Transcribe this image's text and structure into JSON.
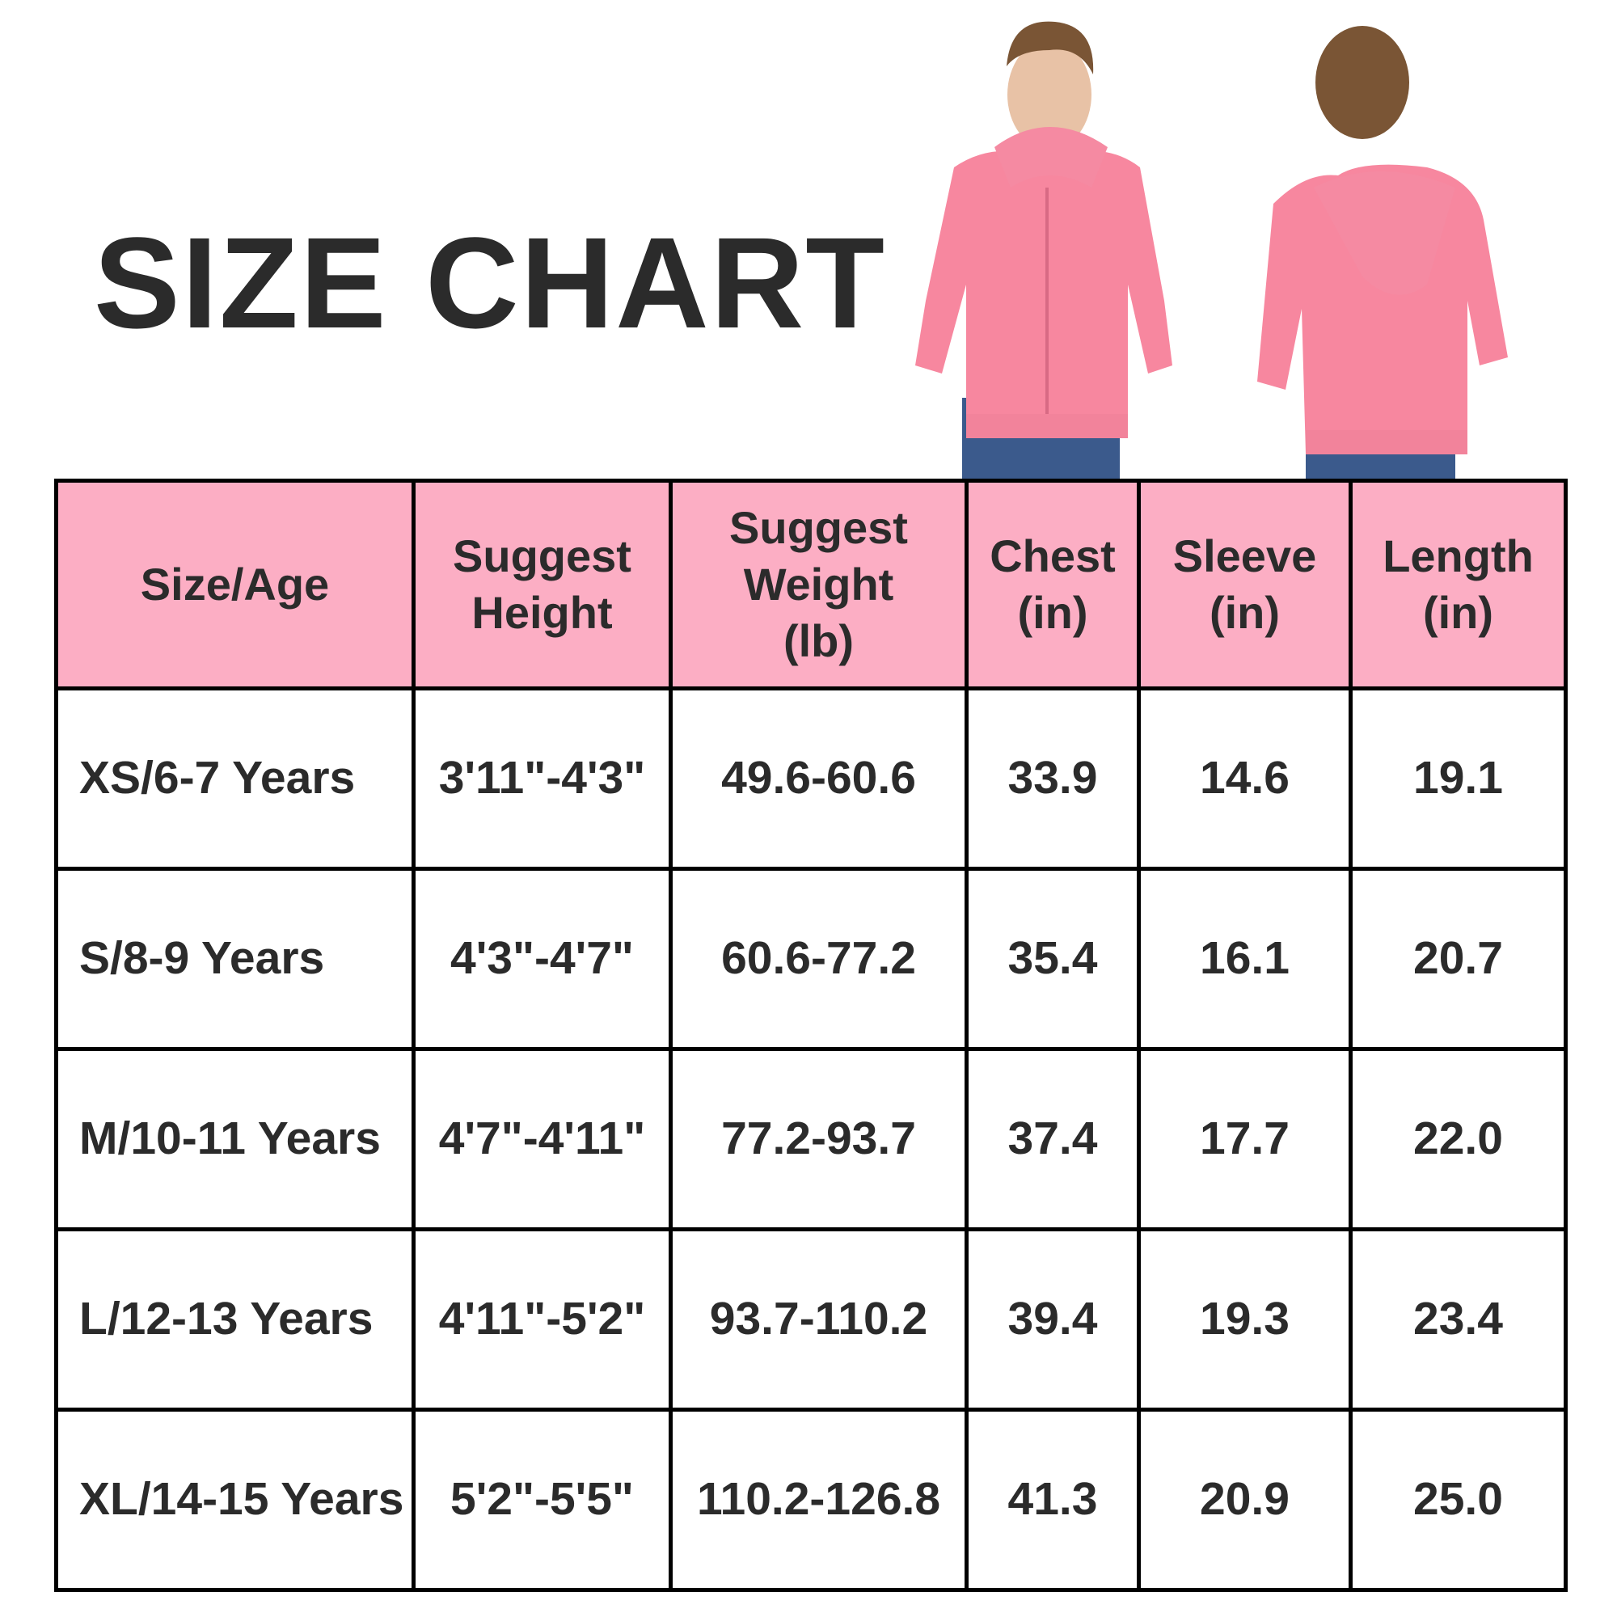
{
  "title": "SIZE CHART",
  "colors": {
    "header_bg": "#fcaec4",
    "hoodie": "#f7879f",
    "text": "#2b2b2b",
    "jeans": "#3b5a8c"
  },
  "images": [
    {
      "name": "model-front-photo",
      "desc_icon": "hoodie-front"
    },
    {
      "name": "model-back-photo",
      "desc_icon": "hoodie-back"
    }
  ],
  "table": {
    "headers": [
      "Size/Age",
      "Suggest\nHeight",
      "Suggest\nWeight\n(lb)",
      "Chest\n(in)",
      "Sleeve\n(in)",
      "Length\n(in)"
    ],
    "rows": [
      [
        "XS/6-7 Years",
        "3'11\"-4'3\"",
        "49.6-60.6",
        "33.9",
        "14.6",
        "19.1"
      ],
      [
        "S/8-9 Years",
        "4'3\"-4'7\"",
        "60.6-77.2",
        "35.4",
        "16.1",
        "20.7"
      ],
      [
        "M/10-11 Years",
        "4'7\"-4'11\"",
        "77.2-93.7",
        "37.4",
        "17.7",
        "22.0"
      ],
      [
        "L/12-13 Years",
        "4'11\"-5'2\"",
        "93.7-110.2",
        "39.4",
        "19.3",
        "23.4"
      ],
      [
        "XL/14-15 Years",
        "5'2\"-5'5\"",
        "110.2-126.8",
        "41.3",
        "20.9",
        "25.0"
      ]
    ]
  }
}
